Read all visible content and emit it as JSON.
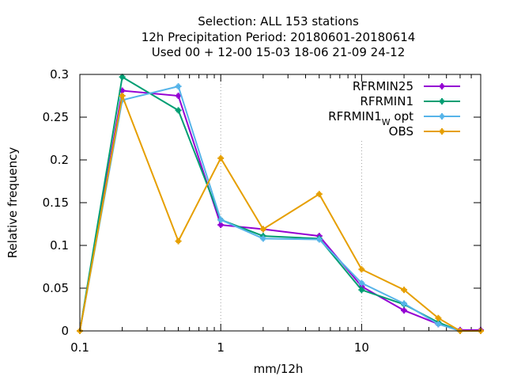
{
  "chart_data": {
    "type": "line",
    "title_lines": [
      "Selection: ALL     153 stations",
      "12h Precipitation  Period: 20180601-20180614",
      "Used  00 + 12-00 15-03 18-06 21-09 24-12"
    ],
    "xlabel": "mm/12h",
    "ylabel": "Relative frequency",
    "xscale": "log",
    "xlim": [
      0.1,
      70
    ],
    "ylim": [
      0,
      0.3
    ],
    "xticks": [
      {
        "value": 0.1,
        "label": "0.1"
      },
      {
        "value": 1,
        "label": "1"
      },
      {
        "value": 10,
        "label": "10"
      }
    ],
    "yticks": [
      {
        "value": 0,
        "label": "0"
      },
      {
        "value": 0.05,
        "label": "0.05"
      },
      {
        "value": 0.1,
        "label": "0.1"
      },
      {
        "value": 0.15,
        "label": "0.15"
      },
      {
        "value": 0.2,
        "label": "0.2"
      },
      {
        "value": 0.25,
        "label": "0.25"
      },
      {
        "value": 0.3,
        "label": "0.3"
      }
    ],
    "grid": true,
    "legend_position": "top-right",
    "x": [
      0.1,
      0.2,
      0.5,
      1,
      2,
      5,
      10,
      20,
      35,
      50,
      70
    ],
    "series": [
      {
        "name": "RFRMIN25",
        "color": "#9400d3",
        "values": [
          0,
          0.281,
          0.275,
          0.124,
          0.119,
          0.111,
          0.052,
          0.024,
          0.008,
          0.001,
          0.001
        ]
      },
      {
        "name": "RFRMIN1",
        "color": "#009e73",
        "values": [
          0,
          0.297,
          0.258,
          0.13,
          0.111,
          0.108,
          0.048,
          0.031,
          0.01,
          0,
          0
        ]
      },
      {
        "name": "RFRMIN1",
        "name_subscript": "W",
        "name_suffix": "opt",
        "color": "#56b4e9",
        "values": [
          0,
          0.27,
          0.286,
          0.13,
          0.108,
          0.107,
          0.056,
          0.032,
          0.008,
          0,
          0
        ]
      },
      {
        "name": "OBS",
        "color": "#e69f00",
        "values": [
          0,
          0.275,
          0.105,
          0.202,
          0.119,
          0.16,
          0.072,
          0.048,
          0.015,
          0,
          0
        ]
      }
    ]
  }
}
